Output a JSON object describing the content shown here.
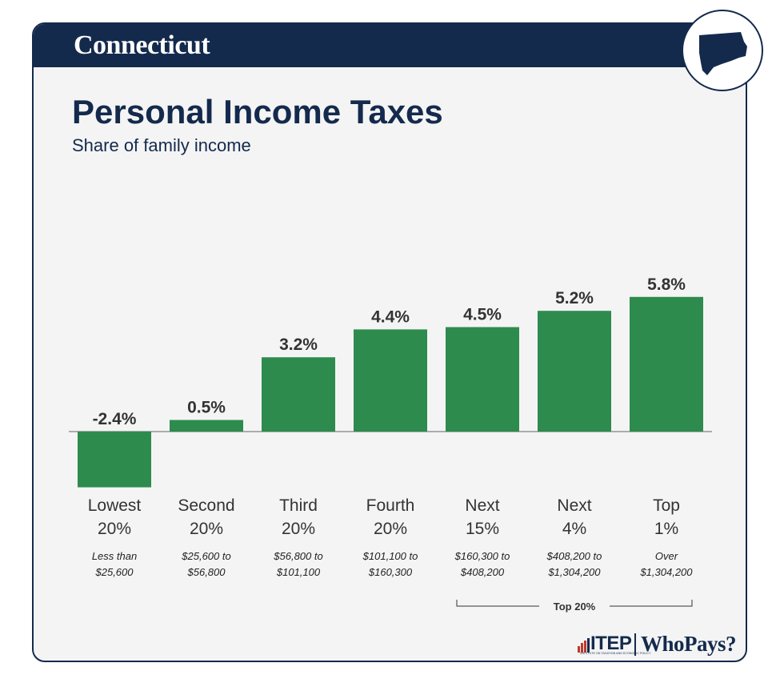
{
  "header": {
    "state": "Connecticut"
  },
  "map_icon": "connecticut-state-outline-icon",
  "chart_data": {
    "type": "bar",
    "title": "Personal Income Taxes",
    "subtitle": "Share of family income",
    "categories": [
      {
        "group": "Lowest",
        "share": "20%",
        "range": [
          "Less than",
          "$25,600"
        ]
      },
      {
        "group": "Second",
        "share": "20%",
        "range": [
          "$25,600 to",
          "$56,800"
        ]
      },
      {
        "group": "Third",
        "share": "20%",
        "range": [
          "$56,800 to",
          "$101,100"
        ]
      },
      {
        "group": "Fourth",
        "share": "20%",
        "range": [
          "$101,100 to",
          "$160,300"
        ]
      },
      {
        "group": "Next",
        "share": "15%",
        "range": [
          "$160,300 to",
          "$408,200"
        ]
      },
      {
        "group": "Next",
        "share": "4%",
        "range": [
          "$408,200 to",
          "$1,304,200"
        ]
      },
      {
        "group": "Top",
        "share": "1%",
        "range": [
          "Over",
          "$1,304,200"
        ]
      }
    ],
    "values": [
      -2.4,
      0.5,
      3.2,
      4.4,
      4.5,
      5.2,
      5.8
    ],
    "value_labels": [
      "-2.4%",
      "0.5%",
      "3.2%",
      "4.4%",
      "4.5%",
      "5.2%",
      "5.8%"
    ],
    "ylim": [
      -2.4,
      5.8
    ],
    "grid": false,
    "bracket": {
      "label": "Top 20%",
      "from_index": 4,
      "to_index": 6
    },
    "colors": {
      "bar": "#2e8b4e",
      "navy": "#142a4d",
      "text": "#333333"
    }
  },
  "footer": {
    "itep": "ITEP",
    "itep_subtitle": "INSTITUTE ON TAXATION AND ECONOMIC POLICY",
    "whopays": "WhoPays?"
  }
}
